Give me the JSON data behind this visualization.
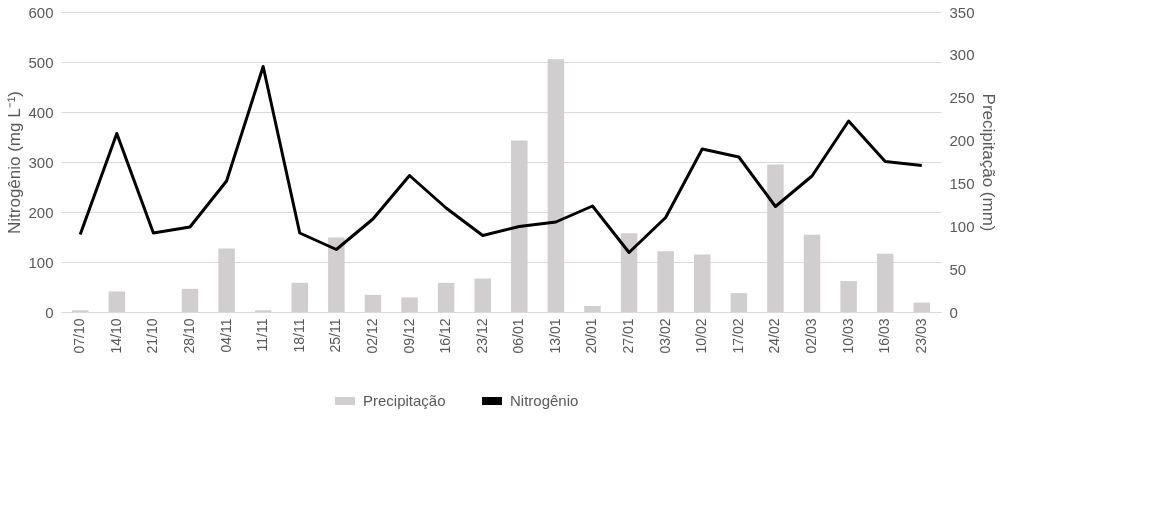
{
  "chart_data": {
    "type": "bar",
    "categories": [
      "07/10",
      "14/10",
      "21/10",
      "28/10",
      "04/11",
      "11/11",
      "18/11",
      "25/11",
      "02/12",
      "09/12",
      "16/12",
      "23/12",
      "06/01",
      "13/01",
      "20/01",
      "27/01",
      "03/02",
      "10/02",
      "17/02",
      "24/02",
      "02/03",
      "10/03",
      "16/03",
      "23/03"
    ],
    "series": [
      {
        "name": "Precipitação",
        "axis": "y2",
        "color": "#d0cece",
        "values": [
          2,
          24,
          0,
          27,
          74,
          2,
          34,
          87,
          20,
          17,
          34,
          39,
          200,
          295,
          7,
          92,
          71,
          67,
          22,
          172,
          90,
          36,
          68,
          11
        ]
      },
      {
        "name": "Nitrogênio",
        "type": "line",
        "color": "#000000",
        "values": [
          155,
          357,
          158,
          170,
          262,
          491,
          158,
          125,
          186,
          273,
          208,
          153,
          171,
          180,
          212,
          119,
          189,
          326,
          310,
          211,
          272,
          382,
          301,
          293
        ]
      }
    ],
    "ylabel": "Nitrogênio (mg L⁻¹)",
    "y2label": "Precipitação (mm)",
    "ylim": [
      0,
      600
    ],
    "yticks": [
      0,
      100,
      200,
      300,
      400,
      500,
      600
    ],
    "y2lim": [
      0,
      350
    ],
    "y2ticks": [
      0,
      50,
      100,
      150,
      200,
      250,
      300,
      350
    ],
    "grid": "y",
    "legend": "bottom",
    "marker": "none",
    "line_style": "solid"
  }
}
